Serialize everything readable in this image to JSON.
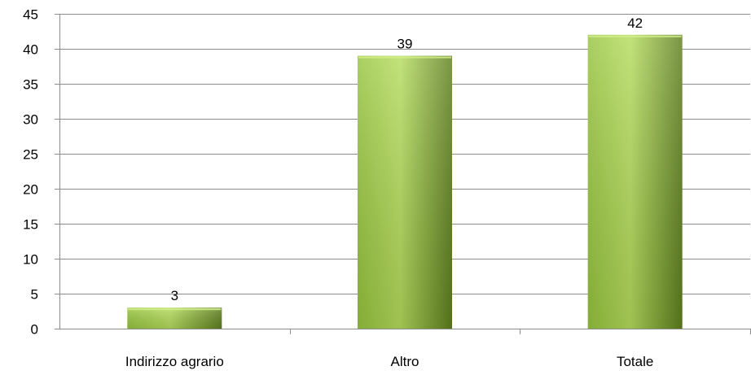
{
  "chart_data": {
    "type": "bar",
    "categories": [
      "Indirizzo agrario",
      "Altro",
      "Totale"
    ],
    "values": [
      3,
      39,
      42
    ],
    "data_labels": [
      "3",
      "39",
      "42"
    ],
    "title": "",
    "xlabel": "",
    "ylabel": "",
    "ylim": [
      0,
      45
    ],
    "yticks": [
      0,
      5,
      10,
      15,
      20,
      25,
      30,
      35,
      40,
      45
    ],
    "ytick_labels": [
      "0",
      "5",
      "10",
      "15",
      "20",
      "25",
      "30",
      "35",
      "40",
      "45"
    ],
    "grid": true,
    "legend": "none",
    "colors": {
      "bar_light": "#b5dc5d",
      "bar_mid": "#97c43e",
      "bar_dark": "#5e7f1e",
      "grid": "#8c8c8c",
      "axis": "#8c8c8c"
    }
  }
}
